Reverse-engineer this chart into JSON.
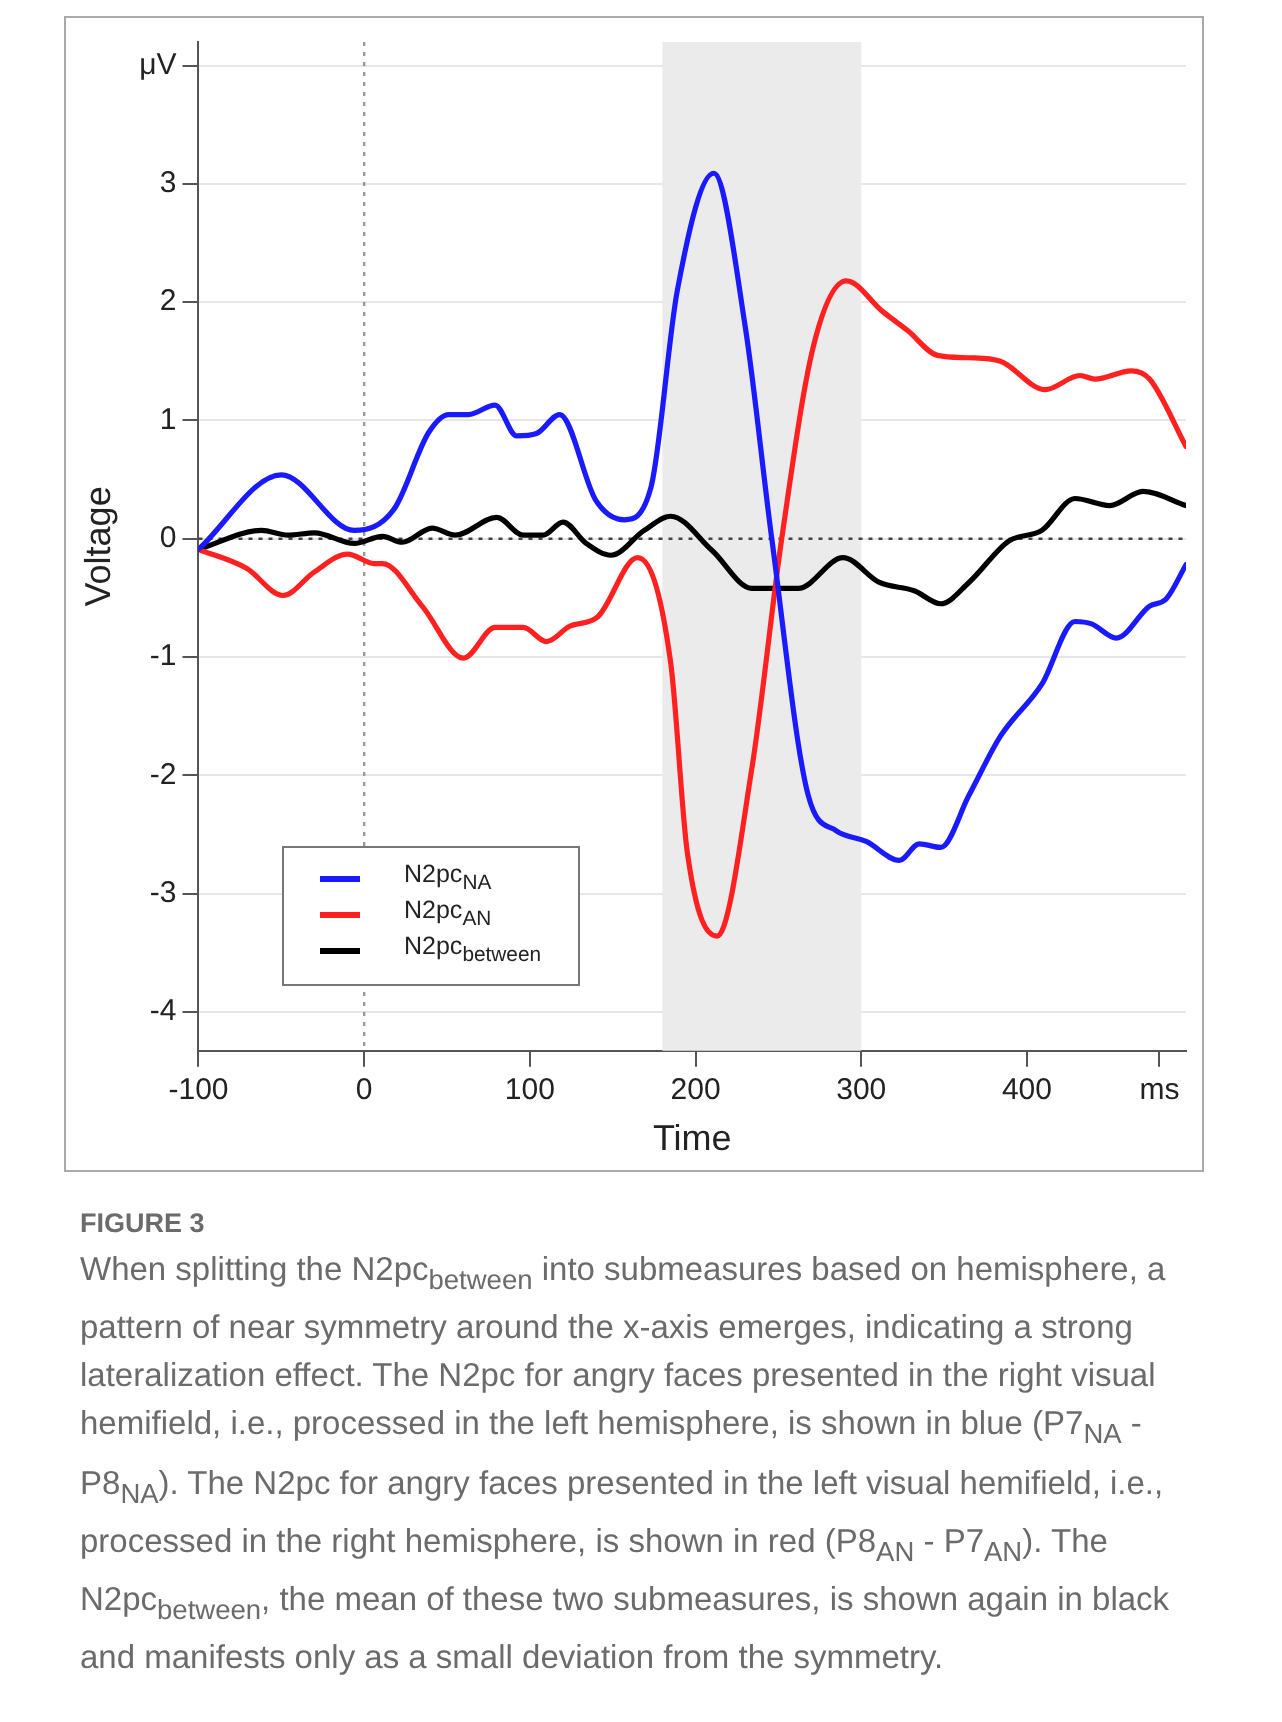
{
  "chart_data": {
    "type": "line",
    "xlabel": "Time",
    "ylabel": "Voltage",
    "xlim": [
      -100,
      496
    ],
    "xticks": [
      -100,
      0,
      100,
      200,
      300,
      400,
      {
        "value": 480,
        "label": "ms"
      }
    ],
    "ylim": [
      -4.33,
      4.2
    ],
    "yticks": [
      -4,
      -3,
      -2,
      -1,
      0,
      1,
      2,
      3,
      {
        "value": 4,
        "label": "μV"
      }
    ],
    "grid": "y",
    "legend": "bottom left",
    "series": [
      {
        "name": "N2pc$_{NA}$",
        "color": "#1a1aff",
        "x": [
          -100,
          -50,
          -6,
          18,
          39,
          51,
          63,
          79,
          92,
          104,
          118,
          140,
          157,
          173,
          189,
          211,
          230,
          246,
          268,
          285,
          303,
          323,
          335,
          348,
          365,
          384,
          409,
          429,
          439,
          454,
          474,
          484,
          496
        ],
        "values": [
          -0.09,
          0.54,
          0.07,
          0.25,
          0.9,
          1.05,
          1.05,
          1.13,
          0.87,
          0.89,
          1.05,
          0.32,
          0.16,
          0.43,
          2.1,
          3.09,
          1.79,
          0,
          -2.17,
          -2.47,
          -2.56,
          -2.72,
          -2.58,
          -2.61,
          -2.17,
          -1.67,
          -1.23,
          -0.7,
          -0.72,
          -0.84,
          -0.57,
          -0.51,
          -0.22
        ]
      },
      {
        "name": "N2pc$_{AN}$",
        "color": "#ff2020",
        "x": [
          -100,
          -71,
          -49,
          -30,
          -10,
          6,
          11,
          35,
          60,
          79,
          96,
          110,
          124,
          141,
          165,
          185,
          195,
          213,
          234,
          252,
          271,
          291,
          313,
          328,
          346,
          365,
          384,
          411,
          432,
          441,
          463,
          474,
          496
        ],
        "values": [
          -0.09,
          -0.25,
          -0.48,
          -0.28,
          -0.13,
          -0.21,
          -0.21,
          -0.57,
          -1.01,
          -0.75,
          -0.75,
          -0.87,
          -0.74,
          -0.66,
          -0.16,
          -1.05,
          -2.65,
          -3.36,
          -1.94,
          0,
          1.62,
          2.18,
          1.92,
          1.76,
          1.55,
          1.53,
          1.5,
          1.26,
          1.38,
          1.35,
          1.42,
          1.35,
          0.78
        ]
      },
      {
        "name": "N2pc$_{between}$",
        "color": "#000000",
        "x": [
          -100,
          -62,
          -46,
          -30,
          -6,
          11,
          23,
          41,
          55,
          80,
          96,
          108,
          120,
          134,
          149,
          169,
          185,
          210,
          234,
          262,
          289,
          311,
          332,
          348,
          365,
          389,
          409,
          429,
          450,
          470,
          496
        ],
        "values": [
          -0.09,
          0.07,
          0.03,
          0.05,
          -0.04,
          0.02,
          -0.03,
          0.09,
          0.03,
          0.18,
          0.03,
          0.03,
          0.14,
          -0.04,
          -0.14,
          0.07,
          0.19,
          -0.1,
          -0.42,
          -0.42,
          -0.16,
          -0.37,
          -0.44,
          -0.55,
          -0.37,
          -0.02,
          0.07,
          0.34,
          0.28,
          0.4,
          0.28
        ]
      }
    ],
    "ref_lines": [
      {
        "axis": "x",
        "value": 0,
        "line_style": "dotted",
        "color": "#999999"
      },
      {
        "axis": "y",
        "value": 0,
        "line_style": "dotted",
        "color": "#444444"
      }
    ],
    "bands": [
      {
        "axis": "x",
        "from": 180,
        "to": 300,
        "color": "#ebebeb"
      }
    ],
    "annotations": [
      "FIGURE 3",
      "When splitting the N2pc$_{between}$ into submeasures based on hemisphere, a pattern of near symmetry around the x-axis emerges, indicating a strong lateralization effect. The N2pc for angry faces presented in the right visual hemifield, i.e., processed in the left hemisphere, is shown in blue (P7$_{NA}$ - P8$_{NA}$). The N2pc for angry faces presented in the left visual hemifield, i.e., processed in the right hemisphere, is shown in red (P8$_{AN}$ - P7$_{AN}$). The N2pc$_{between}$, the mean of these two submeasures, is shown again in black and manifests only as a small deviation from the symmetry."
    ]
  }
}
